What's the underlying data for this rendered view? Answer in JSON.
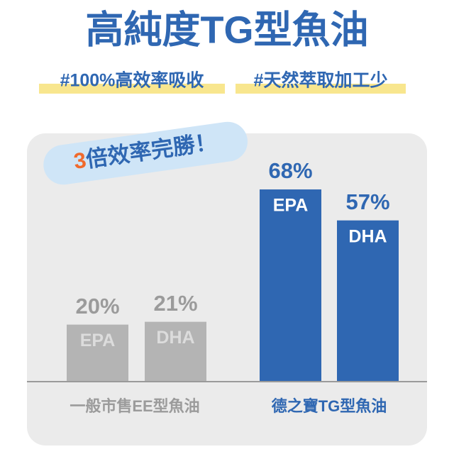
{
  "chart_data": {
    "type": "bar",
    "title": "高純度TG型魚油",
    "tags": [
      "#100%高效率吸收",
      "#天然萃取加工少"
    ],
    "badge": {
      "number": "3",
      "text": "倍效率完勝！"
    },
    "categories": [
      "一般市售EE型魚油",
      "德之寶TG型魚油"
    ],
    "group_colors": [
      "#b4b4b4",
      "#2f67b2"
    ],
    "label_colors": [
      "#9b9b9b",
      "#2f67b2"
    ],
    "series": [
      {
        "name": "EPA",
        "values": [
          20,
          68
        ],
        "value_labels": [
          "20%",
          "68%"
        ]
      },
      {
        "name": "DHA",
        "values": [
          21,
          57
        ],
        "value_labels": [
          "21%",
          "57%"
        ]
      }
    ]
  }
}
